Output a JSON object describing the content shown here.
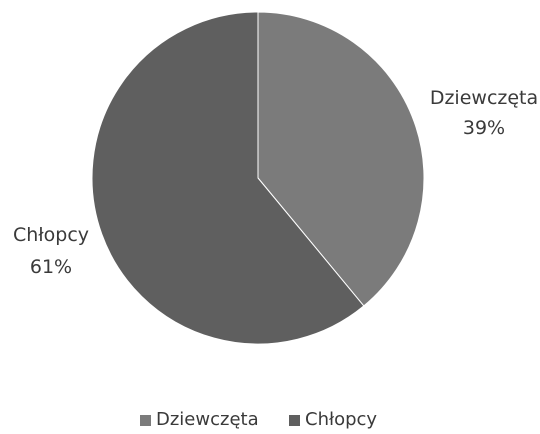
{
  "chart_data": {
    "type": "pie",
    "title": "",
    "slices": [
      {
        "label": "Dziewczęta",
        "value": 39,
        "display": "39%",
        "color": "#7b7b7b"
      },
      {
        "label": "Chłopcy",
        "value": 61,
        "display": "61%",
        "color": "#5f5f5f"
      }
    ],
    "legend": {
      "position": "bottom",
      "items": [
        "Dziewczęta",
        "Chłopcy"
      ]
    }
  }
}
